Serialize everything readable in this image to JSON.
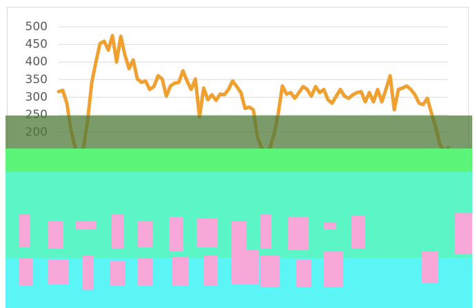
{
  "chart_data": {
    "type": "line",
    "categories": [
      null,
      null,
      null,
      null,
      null,
      null,
      null,
      null,
      null,
      null,
      null,
      null,
      null,
      null,
      null,
      null,
      null,
      null,
      null,
      null,
      null,
      null,
      null,
      null,
      null,
      null,
      null,
      null,
      null,
      null,
      null,
      null,
      null,
      null,
      null,
      null,
      null,
      null,
      null,
      null,
      null,
      null,
      null,
      null,
      null,
      null,
      null,
      null,
      null,
      null,
      null,
      null,
      null,
      null,
      null,
      null,
      null,
      null,
      null,
      null,
      null,
      null,
      null,
      null,
      null,
      null,
      null,
      null,
      null,
      null,
      null,
      null,
      null,
      null,
      null,
      null,
      null,
      null,
      null,
      null,
      null,
      null,
      null,
      null,
      null,
      null,
      null,
      null,
      null,
      null,
      null,
      null,
      null,
      null,
      null
    ],
    "values": [
      316,
      320,
      283,
      205,
      157,
      127,
      157,
      234,
      342,
      400,
      453,
      459,
      434,
      475,
      400,
      473,
      420,
      381,
      406,
      352,
      342,
      346,
      322,
      330,
      361,
      352,
      303,
      332,
      340,
      342,
      375,
      346,
      322,
      352,
      244,
      326,
      293,
      307,
      291,
      309,
      307,
      322,
      346,
      330,
      313,
      268,
      272,
      264,
      186,
      156,
      137,
      156,
      195,
      254,
      332,
      309,
      313,
      297,
      313,
      330,
      322,
      303,
      330,
      313,
      322,
      293,
      283,
      303,
      322,
      303,
      297,
      307,
      313,
      316,
      287,
      313,
      287,
      322,
      287,
      322,
      361,
      264,
      322,
      326,
      332,
      322,
      307,
      283,
      279,
      297,
      254,
      215,
      166,
      146,
      156
    ],
    "color": "#f0a030",
    "ylim": [
      0,
      500
    ],
    "yticks": [
      200,
      250,
      300,
      350,
      400,
      450,
      500
    ],
    "grid": true
  }
}
